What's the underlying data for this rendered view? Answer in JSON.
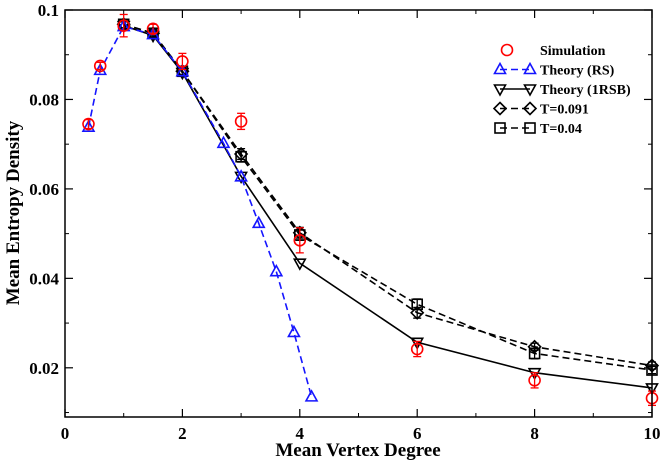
{
  "chart_data": {
    "type": "line",
    "title": "",
    "xlabel": "Mean Vertex Degree",
    "ylabel": "Mean Entropy Density",
    "xlim": [
      0,
      10
    ],
    "ylim": [
      0.009,
      0.1
    ],
    "xticks": [
      0,
      2,
      4,
      6,
      8,
      10
    ],
    "xtick_labels": [
      "0",
      "2",
      "4",
      "6",
      "8",
      "10"
    ],
    "yticks": [
      0.02,
      0.04,
      0.06,
      0.08,
      0.1
    ],
    "ytick_labels": [
      "0.02",
      "0.04",
      "0.06",
      "0.08",
      "0.1"
    ],
    "grid": false,
    "legend_position": "top-right",
    "series": [
      {
        "name": "Simulation",
        "style": "markers-errorbars",
        "marker": "circle",
        "color": "#ff0000",
        "x": [
          0.4,
          0.6,
          1.0,
          1.5,
          2.0,
          3.0,
          4.0,
          6.0,
          8.0,
          10.0
        ],
        "y": [
          0.0745,
          0.0875,
          0.0965,
          0.0958,
          0.0885,
          0.0751,
          0.0485,
          0.0242,
          0.0172,
          0.0132
        ],
        "err": [
          0.001,
          0.0008,
          0.0025,
          0.001,
          0.0018,
          0.0018,
          0.0028,
          0.0017,
          0.0017,
          0.0016
        ]
      },
      {
        "name": "Theory (RS)",
        "style": "dashed",
        "marker": "triangle-up",
        "color": "#1515ff",
        "x": [
          0.4,
          0.6,
          1.0,
          1.5,
          2.0,
          2.7,
          3.0,
          3.3,
          3.6,
          3.9,
          4.2
        ],
        "y": [
          0.0738,
          0.0865,
          0.0963,
          0.0945,
          0.0862,
          0.0702,
          0.0627,
          0.0523,
          0.0415,
          0.0279,
          0.0135
        ]
      },
      {
        "name": "Theory (1RSB)",
        "style": "solid",
        "marker": "triangle-down",
        "color": "#000000",
        "x": [
          1.0,
          1.5,
          2.0,
          3.0,
          4.0,
          6.0,
          8.0,
          10.0
        ],
        "y": [
          0.0965,
          0.0943,
          0.086,
          0.0628,
          0.0434,
          0.0257,
          0.0189,
          0.0155
        ]
      },
      {
        "name": "T=0.091",
        "style": "dashed",
        "marker": "diamond",
        "color": "#000000",
        "x": [
          1.0,
          1.5,
          2.0,
          3.0,
          4.0,
          6.0,
          8.0,
          10.0
        ],
        "y": [
          0.0968,
          0.0948,
          0.0863,
          0.0678,
          0.0502,
          0.0323,
          0.0247,
          0.0205
        ],
        "err": [
          0.0008,
          0.0008,
          0.0008,
          0.0012,
          0.0012,
          0.0012,
          0.0008,
          0.0008
        ]
      },
      {
        "name": "T=0.04",
        "style": "dashed",
        "marker": "square",
        "color": "#000000",
        "x": [
          1.0,
          1.5,
          2.0,
          3.0,
          4.0,
          6.0,
          8.0,
          10.0
        ],
        "y": [
          0.0968,
          0.0948,
          0.0863,
          0.0672,
          0.0497,
          0.0342,
          0.0232,
          0.0195
        ],
        "err": [
          0.0008,
          0.0008,
          0.0008,
          0.0012,
          0.0012,
          0.0012,
          0.0012,
          0.0008
        ]
      }
    ]
  }
}
